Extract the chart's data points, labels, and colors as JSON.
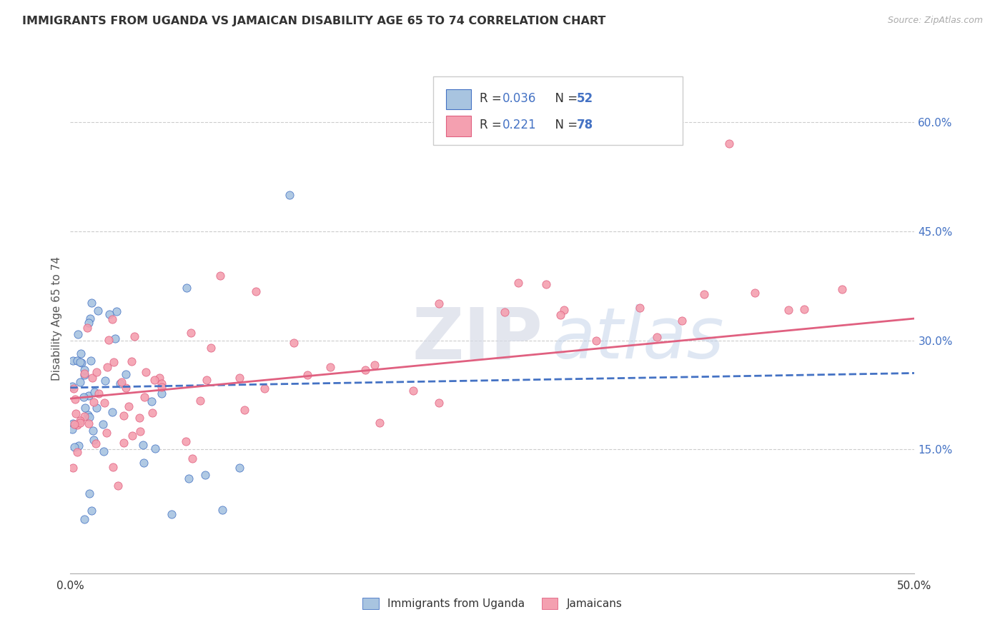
{
  "title": "IMMIGRANTS FROM UGANDA VS JAMAICAN DISABILITY AGE 65 TO 74 CORRELATION CHART",
  "source": "Source: ZipAtlas.com",
  "ylabel": "Disability Age 65 to 74",
  "xlim": [
    0.0,
    0.5
  ],
  "ylim": [
    -0.02,
    0.68
  ],
  "xticks": [
    0.0,
    0.1,
    0.2,
    0.3,
    0.4,
    0.5
  ],
  "xticklabels": [
    "0.0%",
    "",
    "",
    "",
    "",
    "50.0%"
  ],
  "yticks_right": [
    0.15,
    0.3,
    0.45,
    0.6
  ],
  "ytick_right_labels": [
    "15.0%",
    "30.0%",
    "45.0%",
    "60.0%"
  ],
  "r1": 0.036,
  "n1": 52,
  "r2": 0.221,
  "n2": 78,
  "color_uganda": "#a8c4e0",
  "color_jamaica": "#f4a0b0",
  "color_line_uganda": "#4472c4",
  "color_line_jamaica": "#e06080",
  "watermark_zip": "ZIP",
  "watermark_atlas": "atlas",
  "legend_label_1": "Immigrants from Uganda",
  "legend_label_2": "Jamaicans"
}
